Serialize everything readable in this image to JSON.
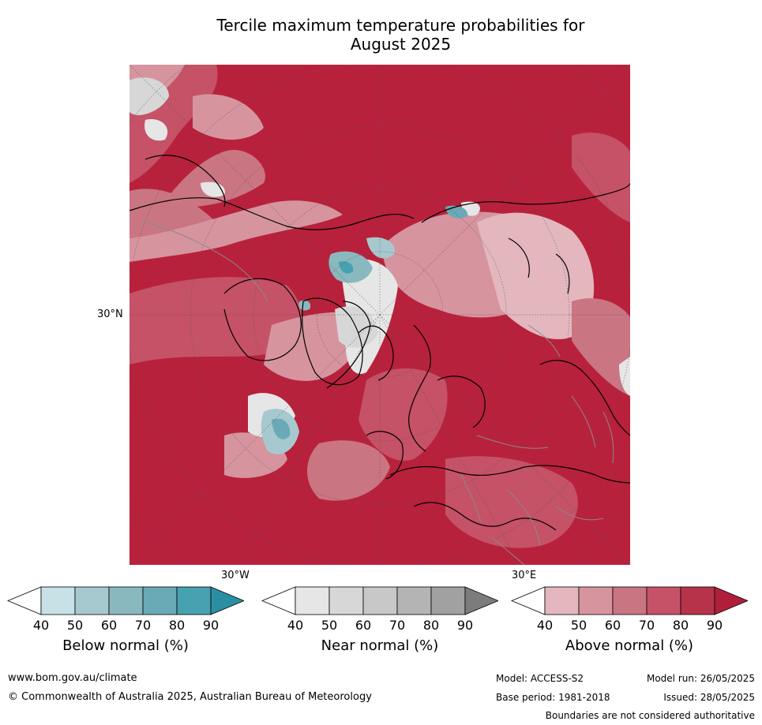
{
  "title": {
    "line1": "Tercile maximum temperature probabilities for",
    "line2": "August 2025"
  },
  "map": {
    "lat_label": "30°N",
    "lon_label_west": "30°W",
    "lon_label_east": "30°E"
  },
  "colorbars": [
    {
      "label": "Below normal (%)",
      "ticks": [
        "40",
        "50",
        "60",
        "70",
        "80",
        "90"
      ],
      "colors": [
        "#ffffff",
        "#c8e1e7",
        "#a6c9cf",
        "#8ab8bf",
        "#6aaab6",
        "#47a1b0",
        "#2b8fa3"
      ]
    },
    {
      "label": "Near normal (%)",
      "ticks": [
        "40",
        "50",
        "60",
        "70",
        "80",
        "90"
      ],
      "colors": [
        "#ffffff",
        "#e6e6e6",
        "#d7d7d7",
        "#c8c8c8",
        "#b4b4b4",
        "#a1a1a1",
        "#7c7c7c"
      ]
    },
    {
      "label": "Above normal (%)",
      "ticks": [
        "40",
        "50",
        "60",
        "70",
        "80",
        "90"
      ],
      "colors": [
        "#ffffff",
        "#e3b7bd",
        "#d6949f",
        "#ca7582",
        "#c55267",
        "#b73349",
        "#b01e3b"
      ]
    }
  ],
  "footer": {
    "website": "www.bom.gov.au/climate",
    "copyright": "© Commonwealth of Australia 2025, Australian Bureau of Meteorology",
    "model": "Model: ACCESS-S2",
    "model_run": "Model run: 26/05/2025",
    "base_period": "Base period: 1981-2018",
    "issued": "Issued: 28/05/2025",
    "disclaimer": "Boundaries are not considered authoritative"
  }
}
